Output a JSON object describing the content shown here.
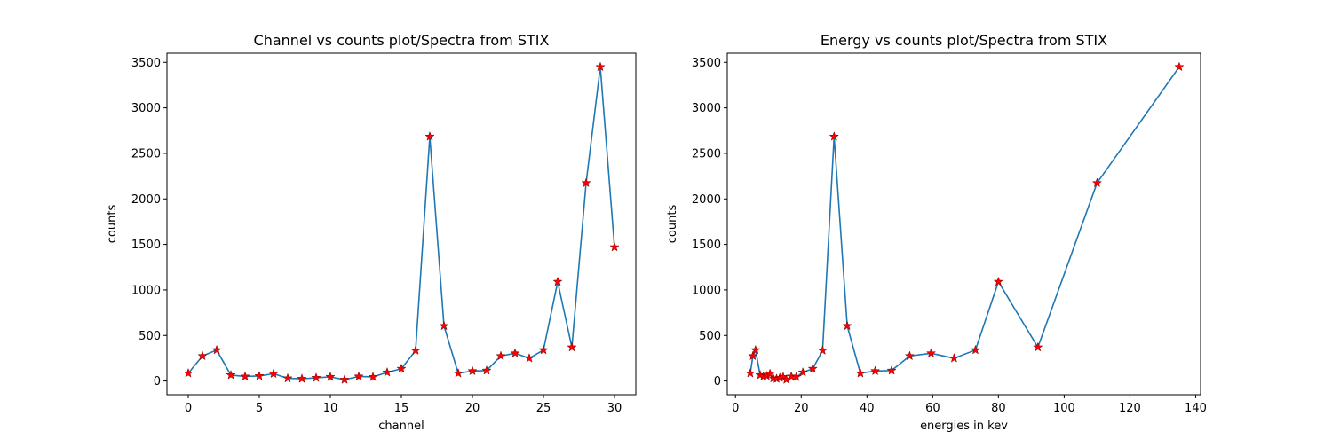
{
  "chart_data": [
    {
      "type": "line",
      "title": "Channel vs counts plot/Spectra from STIX",
      "xlabel": "channel",
      "ylabel": "counts",
      "xlim": [
        -1.5,
        31.5
      ],
      "ylim": [
        -150,
        3600
      ],
      "xticks": [
        0,
        5,
        10,
        15,
        20,
        25,
        30
      ],
      "yticks": [
        0,
        500,
        1000,
        1500,
        2000,
        2500,
        3000,
        3500
      ],
      "grid": false,
      "line_color": "#1f77b4",
      "marker": "star",
      "marker_color": "#ff0000",
      "x": [
        0,
        1,
        2,
        3,
        4,
        5,
        6,
        7,
        8,
        9,
        10,
        11,
        12,
        13,
        14,
        15,
        16,
        17,
        18,
        19,
        20,
        21,
        22,
        23,
        24,
        25,
        26,
        27,
        28,
        29,
        30
      ],
      "y": [
        85,
        275,
        340,
        65,
        50,
        55,
        80,
        30,
        25,
        35,
        45,
        15,
        50,
        45,
        95,
        135,
        335,
        2685,
        605,
        85,
        110,
        115,
        275,
        305,
        250,
        340,
        1090,
        370,
        2175,
        3450,
        1470
      ]
    },
    {
      "type": "line",
      "title": "Energy vs counts plot/Spectra from STIX",
      "xlabel": "energies in kev",
      "ylabel": "counts",
      "xlim": [
        -2.5,
        141.5
      ],
      "ylim": [
        -150,
        3600
      ],
      "xticks": [
        0,
        20,
        40,
        60,
        80,
        100,
        120,
        140
      ],
      "yticks": [
        0,
        500,
        1000,
        1500,
        2000,
        2500,
        3000,
        3500
      ],
      "grid": false,
      "line_color": "#1f77b4",
      "marker": "star",
      "marker_color": "#ff0000",
      "x": [
        4.5,
        5.3,
        6.1,
        7.5,
        8.5,
        9.5,
        10.5,
        11.5,
        12.5,
        13.5,
        14.5,
        15.5,
        17,
        18.5,
        20.5,
        23.5,
        26.5,
        30,
        34,
        38,
        42.5,
        47.5,
        53,
        59.5,
        66.5,
        73,
        80,
        92,
        110,
        135
      ],
      "y": [
        85,
        275,
        340,
        65,
        50,
        55,
        80,
        30,
        25,
        35,
        45,
        15,
        50,
        45,
        95,
        135,
        335,
        2685,
        605,
        85,
        110,
        115,
        275,
        305,
        250,
        340,
        1090,
        370,
        2175,
        3450
      ]
    }
  ]
}
